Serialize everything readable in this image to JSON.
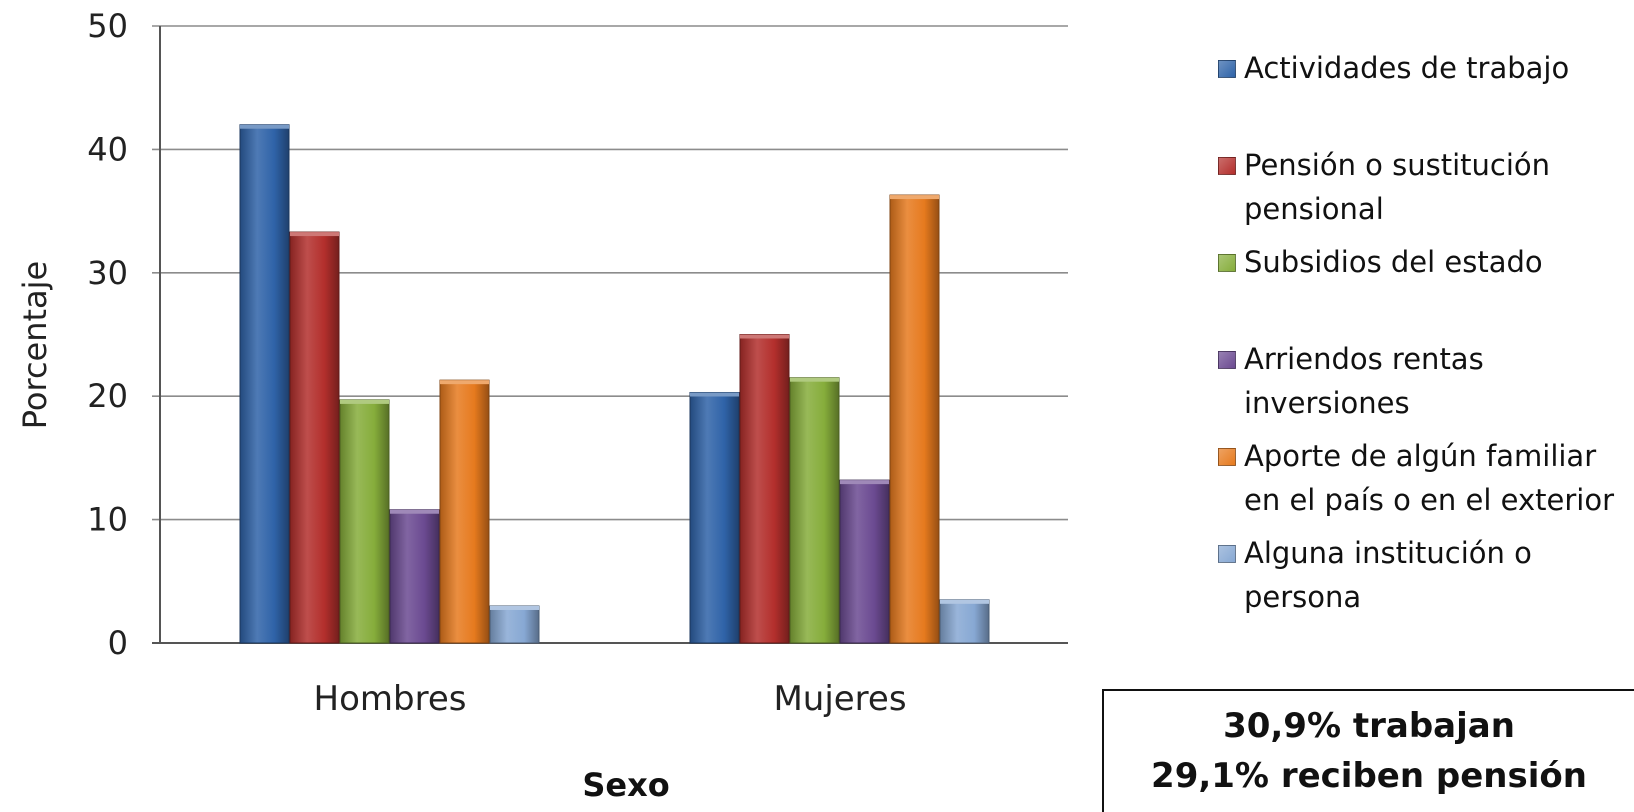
{
  "chart_data": {
    "type": "bar",
    "categories": [
      "Hombres",
      "Mujeres"
    ],
    "series": [
      {
        "name": "Actividades de trabajo",
        "values": [
          42.0,
          20.3
        ],
        "color": "#2f63a8"
      },
      {
        "name": "Pensión o sustitución pensional",
        "values": [
          33.3,
          25.0
        ],
        "color": "#b32f2c"
      },
      {
        "name": "Subsidios del estado",
        "values": [
          19.7,
          21.5
        ],
        "color": "#86ad3b"
      },
      {
        "name": "Arriendos rentas inversiones",
        "values": [
          10.8,
          13.2
        ],
        "color": "#6b4a91"
      },
      {
        "name": "Aporte de algún familiar en el país o en el exterior",
        "values": [
          21.3,
          36.3
        ],
        "color": "#e67a1e"
      },
      {
        "name": "Alguna institución o persona",
        "values": [
          3.0,
          3.5
        ],
        "color": "#87a8d3"
      }
    ],
    "xlabel": "Sexo",
    "ylabel": "Porcentaje",
    "ylim": [
      0,
      50
    ],
    "yticks": [
      0,
      10,
      20,
      30,
      40,
      50
    ],
    "grid": true,
    "legend_position": "right"
  },
  "legend": {
    "items": [
      {
        "lines": [
          "Actividades de trabajo"
        ]
      },
      {
        "lines": [
          "Pensión o sustitución",
          "pensional"
        ]
      },
      {
        "lines": [
          "Subsidios del estado"
        ]
      },
      {
        "lines": [
          "Arriendos rentas",
          "inversiones"
        ]
      },
      {
        "lines": [
          "Aporte de algún familiar",
          "en el país o en el exterior"
        ]
      },
      {
        "lines": [
          "Alguna institución o",
          "persona"
        ]
      }
    ]
  },
  "note": {
    "line1": "30,9% trabajan",
    "line2": "29,1% reciben pensión"
  }
}
